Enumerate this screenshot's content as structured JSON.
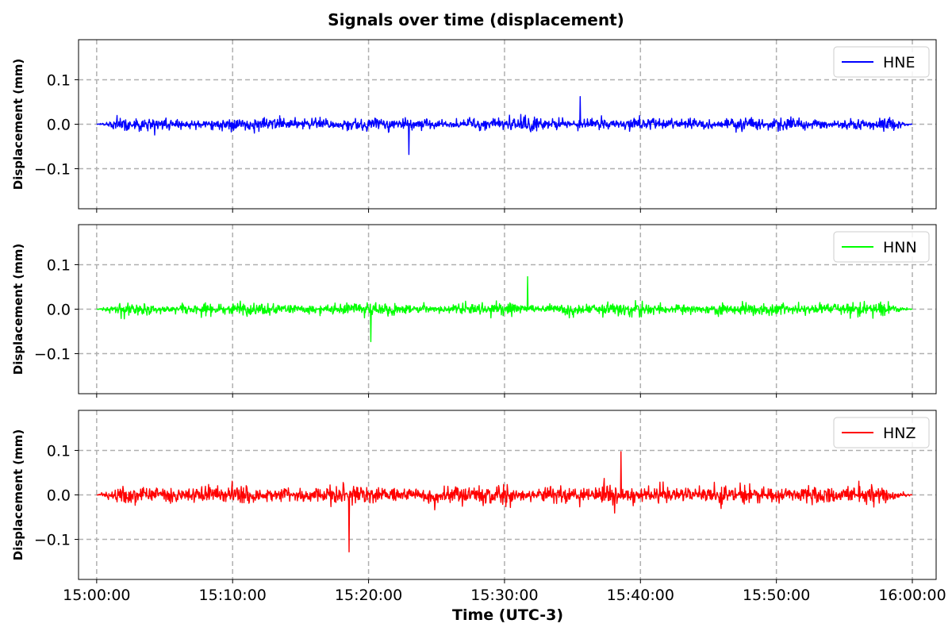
{
  "chart_data": {
    "type": "line",
    "title": "Signals over time (displacement)",
    "xlabel": "Time (UTC-3)",
    "ylabel": "Displacement (mm)",
    "xlim": [
      "14:58:40",
      "16:01:45"
    ],
    "x_ticks": [
      "15:00:00",
      "15:10:00",
      "15:20:00",
      "15:30:00",
      "15:40:00",
      "15:50:00",
      "16:00:00"
    ],
    "y_ticks": [
      -0.1,
      0.0,
      0.1
    ],
    "y_tick_labels": [
      "−0.1",
      "0.0",
      "0.1"
    ],
    "ylim": [
      -0.19,
      0.19
    ],
    "grid": true,
    "legend_position": "top-right",
    "series": [
      {
        "name": "HNE",
        "color": "#0000ff",
        "time_range": [
          "15:00:00",
          "16:00:00"
        ],
        "typical_amplitude": 0.03,
        "peak_max": 0.062,
        "peak_min": -0.068,
        "taper_start": "15:00:00",
        "taper_end": "16:00:00"
      },
      {
        "name": "HNN",
        "color": "#00ff00",
        "time_range": [
          "15:00:00",
          "16:00:00"
        ],
        "typical_amplitude": 0.03,
        "peak_max": 0.073,
        "peak_min": -0.073,
        "taper_start": "15:00:00",
        "taper_end": "16:00:00"
      },
      {
        "name": "HNZ",
        "color": "#ff0000",
        "time_range": [
          "15:00:00",
          "16:00:00"
        ],
        "typical_amplitude": 0.045,
        "peak_max": 0.097,
        "peak_min": -0.128,
        "taper_start": "15:00:00",
        "taper_end": "16:00:00"
      }
    ]
  }
}
